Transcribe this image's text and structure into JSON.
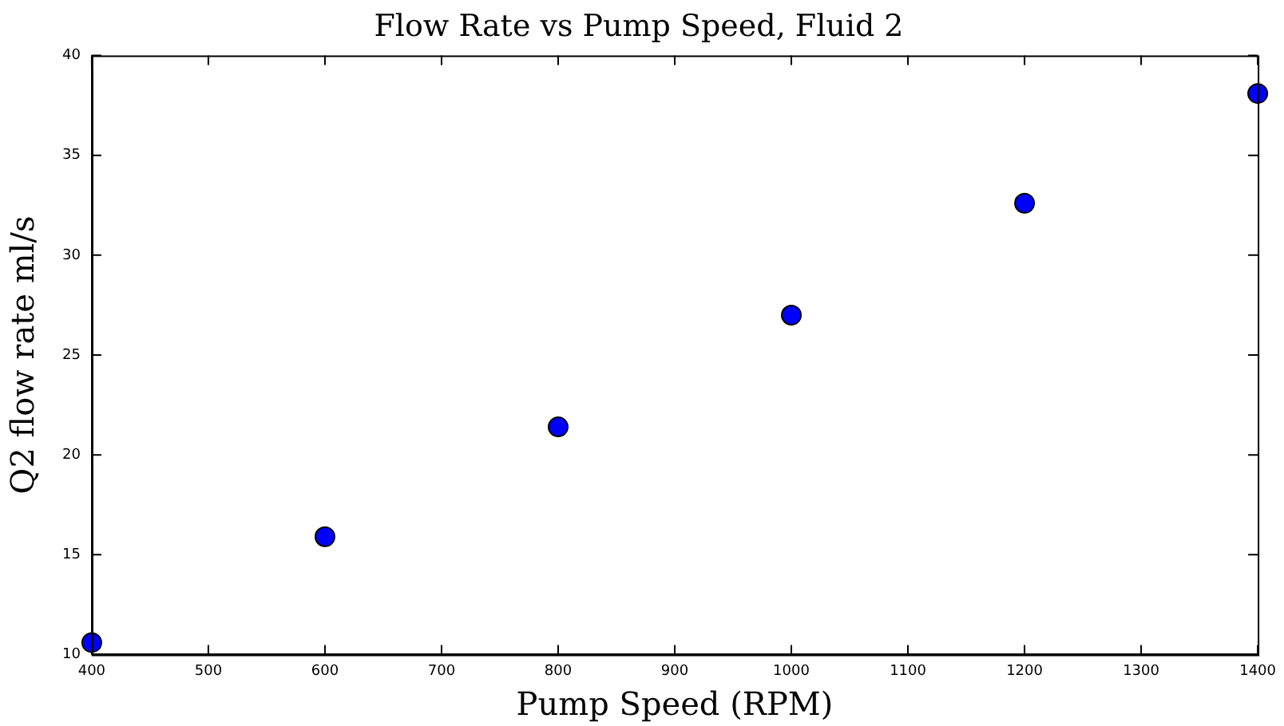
{
  "chart_data": {
    "type": "scatter",
    "title": "Flow Rate vs Pump Speed, Fluid 2",
    "xlabel": "Pump Speed (RPM)",
    "ylabel": "Q2 flow rate ml/s",
    "x": [
      400,
      600,
      800,
      1000,
      1200,
      1400
    ],
    "series": [
      {
        "color": "#0000ff",
        "values": [
          10.6,
          15.9,
          21.4,
          27.0,
          32.6,
          38.1
        ]
      }
    ],
    "xlim": [
      400,
      1400
    ],
    "xticks": [
      400,
      500,
      600,
      700,
      800,
      900,
      1000,
      1100,
      1200,
      1300,
      1400
    ],
    "ylim": [
      10,
      40
    ],
    "yticks": [
      10,
      15,
      20,
      25,
      30,
      35,
      40
    ],
    "grid": false,
    "legend": false,
    "marker": "circle"
  }
}
